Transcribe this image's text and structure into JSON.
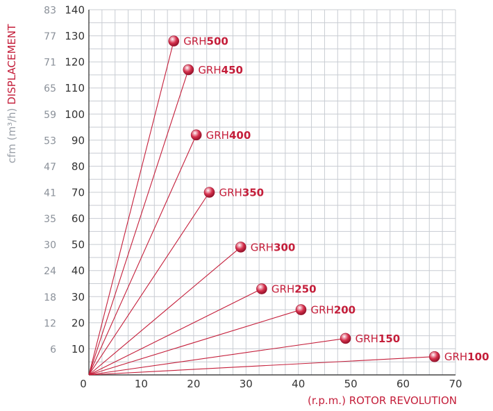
{
  "chart_data": {
    "type": "scatter",
    "xlabel": "(r.p.m.) ROTOR REVOLUTION",
    "ylabel_unit": "cfm (m³/h)",
    "ylabel_name": "DISPLACEMENT",
    "xlim": [
      0,
      70
    ],
    "ylim": [
      0,
      140
    ],
    "x_ticks": [
      "0",
      "10",
      "20",
      "30",
      "40",
      "50",
      "60",
      "70"
    ],
    "y_ticks": [
      "10",
      "20",
      "30",
      "40",
      "50",
      "60",
      "70",
      "80",
      "90",
      "100",
      "110",
      "120",
      "130",
      "140"
    ],
    "y2_ticks": [
      "6",
      "12",
      "18",
      "24",
      "30",
      "35",
      "41",
      "47",
      "53",
      "59",
      "65",
      "71",
      "77",
      "83"
    ],
    "grid": true,
    "rays_from_origin": true,
    "series": [
      {
        "prefix": "GRH",
        "model": "500",
        "x": 16.2,
        "y": 128
      },
      {
        "prefix": "GRH",
        "model": "450",
        "x": 19,
        "y": 117
      },
      {
        "prefix": "GRH",
        "model": "400",
        "x": 20.5,
        "y": 92
      },
      {
        "prefix": "GRH",
        "model": "350",
        "x": 23,
        "y": 70
      },
      {
        "prefix": "GRH",
        "model": "300",
        "x": 29,
        "y": 49
      },
      {
        "prefix": "GRH",
        "model": "250",
        "x": 33,
        "y": 33
      },
      {
        "prefix": "GRH",
        "model": "200",
        "x": 40.5,
        "y": 25
      },
      {
        "prefix": "GRH",
        "model": "150",
        "x": 49,
        "y": 14
      },
      {
        "prefix": "GRH",
        "model": "100",
        "x": 66,
        "y": 7
      }
    ],
    "colors": {
      "accent": "#c41e3a",
      "grid": "#c8ccd2",
      "tick_primary": "#333333",
      "tick_secondary": "#8a9099",
      "point": "#d6314d"
    }
  }
}
